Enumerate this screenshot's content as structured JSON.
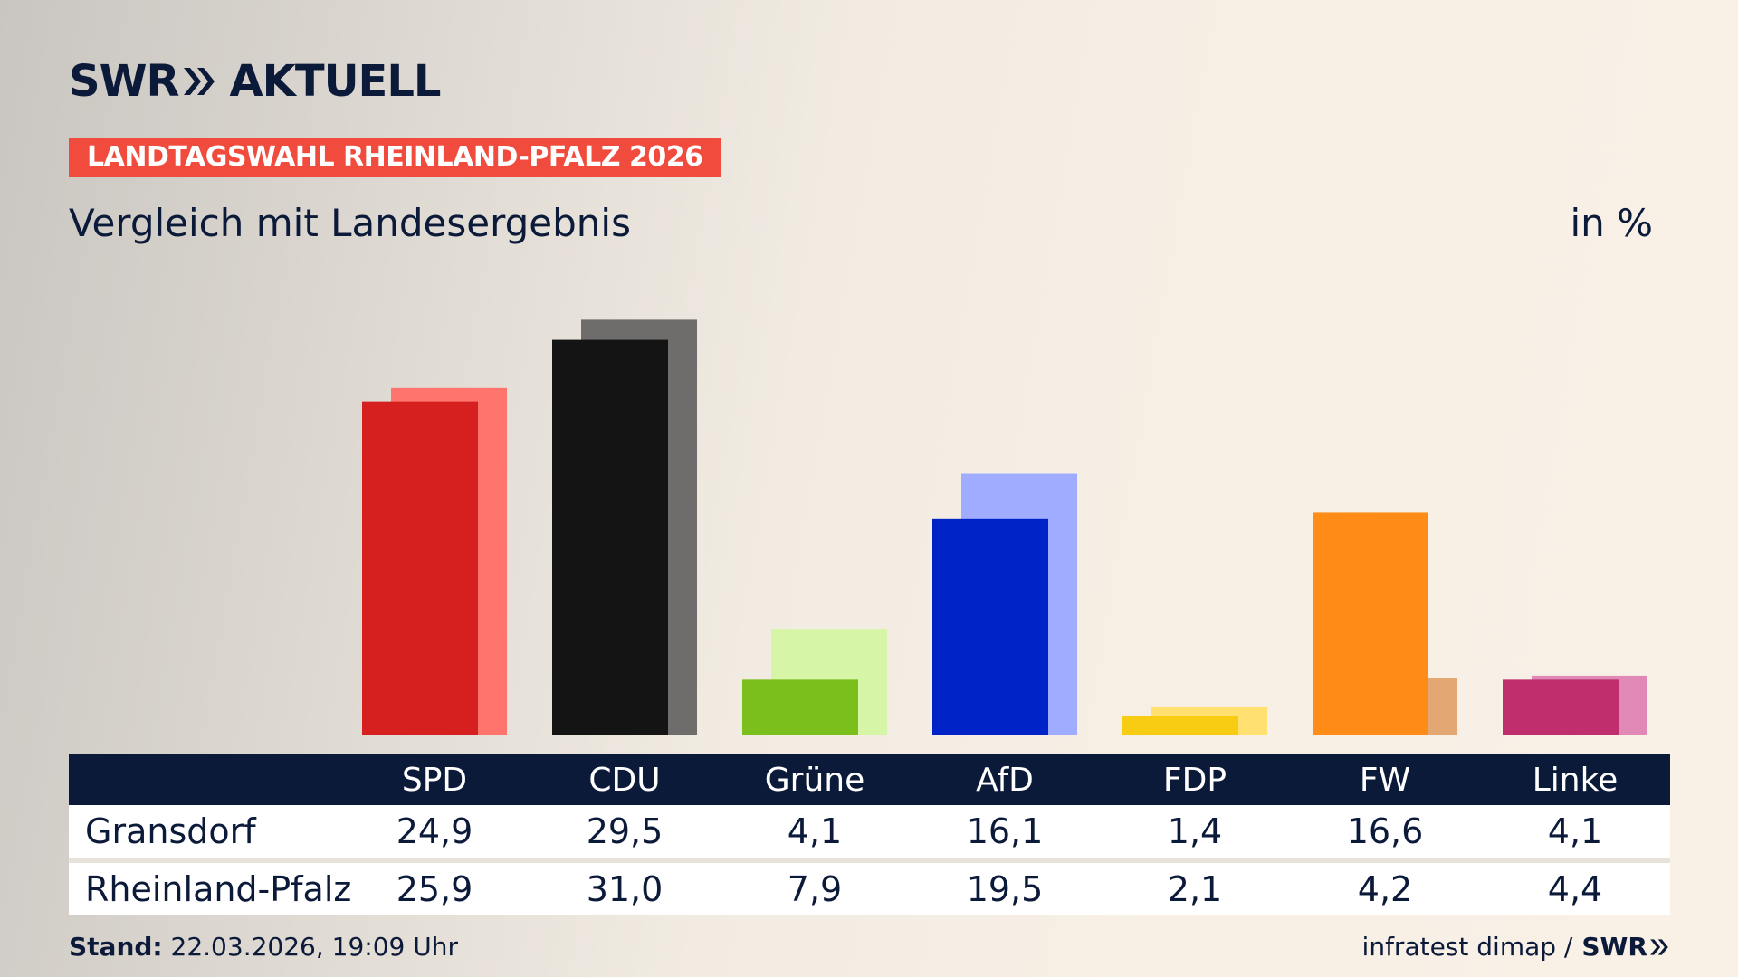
{
  "header": {
    "brand_left": "SWR",
    "brand_right": "AKTUELL",
    "badge": "LANDTAGSWAHL RHEINLAND-PFALZ 2026",
    "subtitle": "Vergleich mit Landesergebnis",
    "unit": "in %"
  },
  "colors": {
    "navy": "#0c1a3a",
    "badge": "#f04b3c"
  },
  "chart_data": {
    "type": "bar",
    "categories": [
      "SPD",
      "CDU",
      "Grüne",
      "AfD",
      "FDP",
      "FW",
      "Linke"
    ],
    "series": [
      {
        "name": "Gransdorf",
        "values": [
          24.9,
          29.5,
          4.1,
          16.1,
          1.4,
          16.6,
          4.1
        ],
        "colors": [
          "#d61f1f",
          "#141414",
          "#7abf1c",
          "#0023c8",
          "#f8cc12",
          "#ff8c17",
          "#bf2f6e"
        ]
      },
      {
        "name": "Rheinland-Pfalz",
        "values": [
          25.9,
          31.0,
          7.9,
          19.5,
          2.1,
          4.2,
          4.4
        ],
        "colors": [
          "#ff756e",
          "#6f6d6b",
          "#d6f5a7",
          "#a0acff",
          "#ffe070",
          "#e2a772",
          "#e088b6"
        ]
      }
    ],
    "ylim": [
      0,
      32
    ]
  },
  "table": {
    "rows": [
      {
        "label": "Gransdorf",
        "values": [
          "24,9",
          "29,5",
          "4,1",
          "16,1",
          "1,4",
          "16,6",
          "4,1"
        ]
      },
      {
        "label": "Rheinland-Pfalz",
        "values": [
          "25,9",
          "31,0",
          "7,9",
          "19,5",
          "2,1",
          "4,2",
          "4,4"
        ]
      }
    ]
  },
  "footer": {
    "stand_label": "Stand:",
    "stand_value": "22.03.2026, 19:09 Uhr",
    "source": "infratest dimap /",
    "source_brand": "SWR"
  }
}
